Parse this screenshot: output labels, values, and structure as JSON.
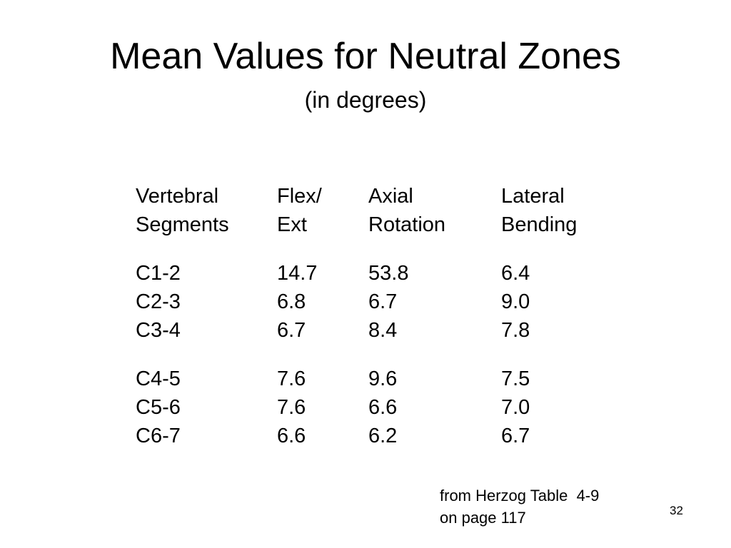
{
  "slide": {
    "title": "Mean Values for Neutral Zones",
    "subtitle": "(in degrees)",
    "number": "32"
  },
  "table": {
    "header_line1": [
      "Vertebral",
      "Flex/",
      "Axial",
      "Lateral"
    ],
    "header_line2": [
      "Segments",
      "Ext",
      "Rotation",
      "Bending"
    ],
    "group1": [
      [
        "C1-2",
        "14.7",
        "53.8",
        "6.4"
      ],
      [
        "C2-3",
        "6.8",
        "6.7",
        "9.0"
      ],
      [
        "C3-4",
        "6.7",
        "8.4",
        "7.8"
      ]
    ],
    "group2": [
      [
        "C4-5",
        "7.6",
        "9.6",
        "7.5"
      ],
      [
        "C5-6",
        "7.6",
        "6.6",
        "7.0"
      ],
      [
        "C6-7",
        "6.6",
        "6.2",
        "6.7"
      ]
    ]
  },
  "source": {
    "line1": "from Herzog Table  4-9",
    "line2": "on page 117"
  }
}
